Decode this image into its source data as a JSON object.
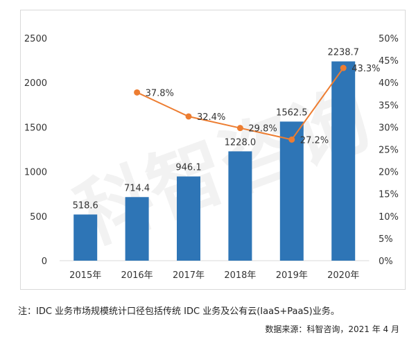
{
  "chart_data": {
    "type": "bar+line",
    "categories": [
      "2015年",
      "2016年",
      "2017年",
      "2018年",
      "2019年",
      "2020年"
    ],
    "series": [
      {
        "type": "bar",
        "axis": "left",
        "values": [
          518.6,
          714.4,
          946.1,
          1228.0,
          1562.5,
          2238.7
        ],
        "labels": [
          "518.6",
          "714.4",
          "946.1",
          "1228.0",
          "1562.5",
          "2238.7"
        ],
        "color": "#2E75B6"
      },
      {
        "type": "line",
        "axis": "right",
        "values": [
          null,
          37.8,
          32.4,
          29.8,
          27.2,
          43.3
        ],
        "labels": [
          "",
          "37.8%",
          "32.4%",
          "29.8%",
          "27.2%",
          "43.3%"
        ],
        "color": "#ED7D31"
      }
    ],
    "ylim_left": [
      0,
      2500
    ],
    "yticks_left": [
      "0",
      "500",
      "1000",
      "1500",
      "2000",
      "2500"
    ],
    "ylim_right": [
      0,
      50
    ],
    "yticks_right": [
      "0%",
      "5%",
      "10%",
      "15%",
      "20%",
      "25%",
      "30%",
      "35%",
      "40%",
      "45%",
      "50%"
    ],
    "grid": false,
    "legend": "none"
  },
  "note": "注：IDC 业务市场规模统计口径包括传统 IDC 业务及公有云(IaaS+PaaS)业务。",
  "source": "数据来源：科智咨询，2021 年 4 月",
  "watermark": "科智咨询"
}
